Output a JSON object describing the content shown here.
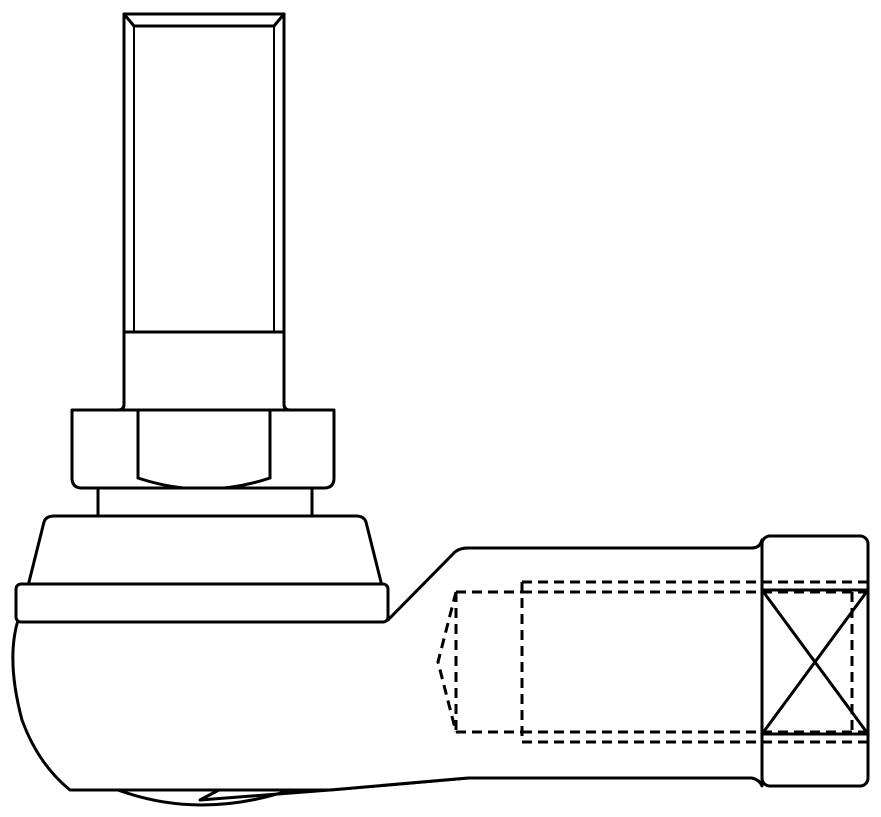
{
  "drawing": {
    "subject": "ball-joint-rod-end",
    "view": "side-elevation",
    "line_color": "#000000",
    "background_color": "#ffffff",
    "visible_text": []
  }
}
